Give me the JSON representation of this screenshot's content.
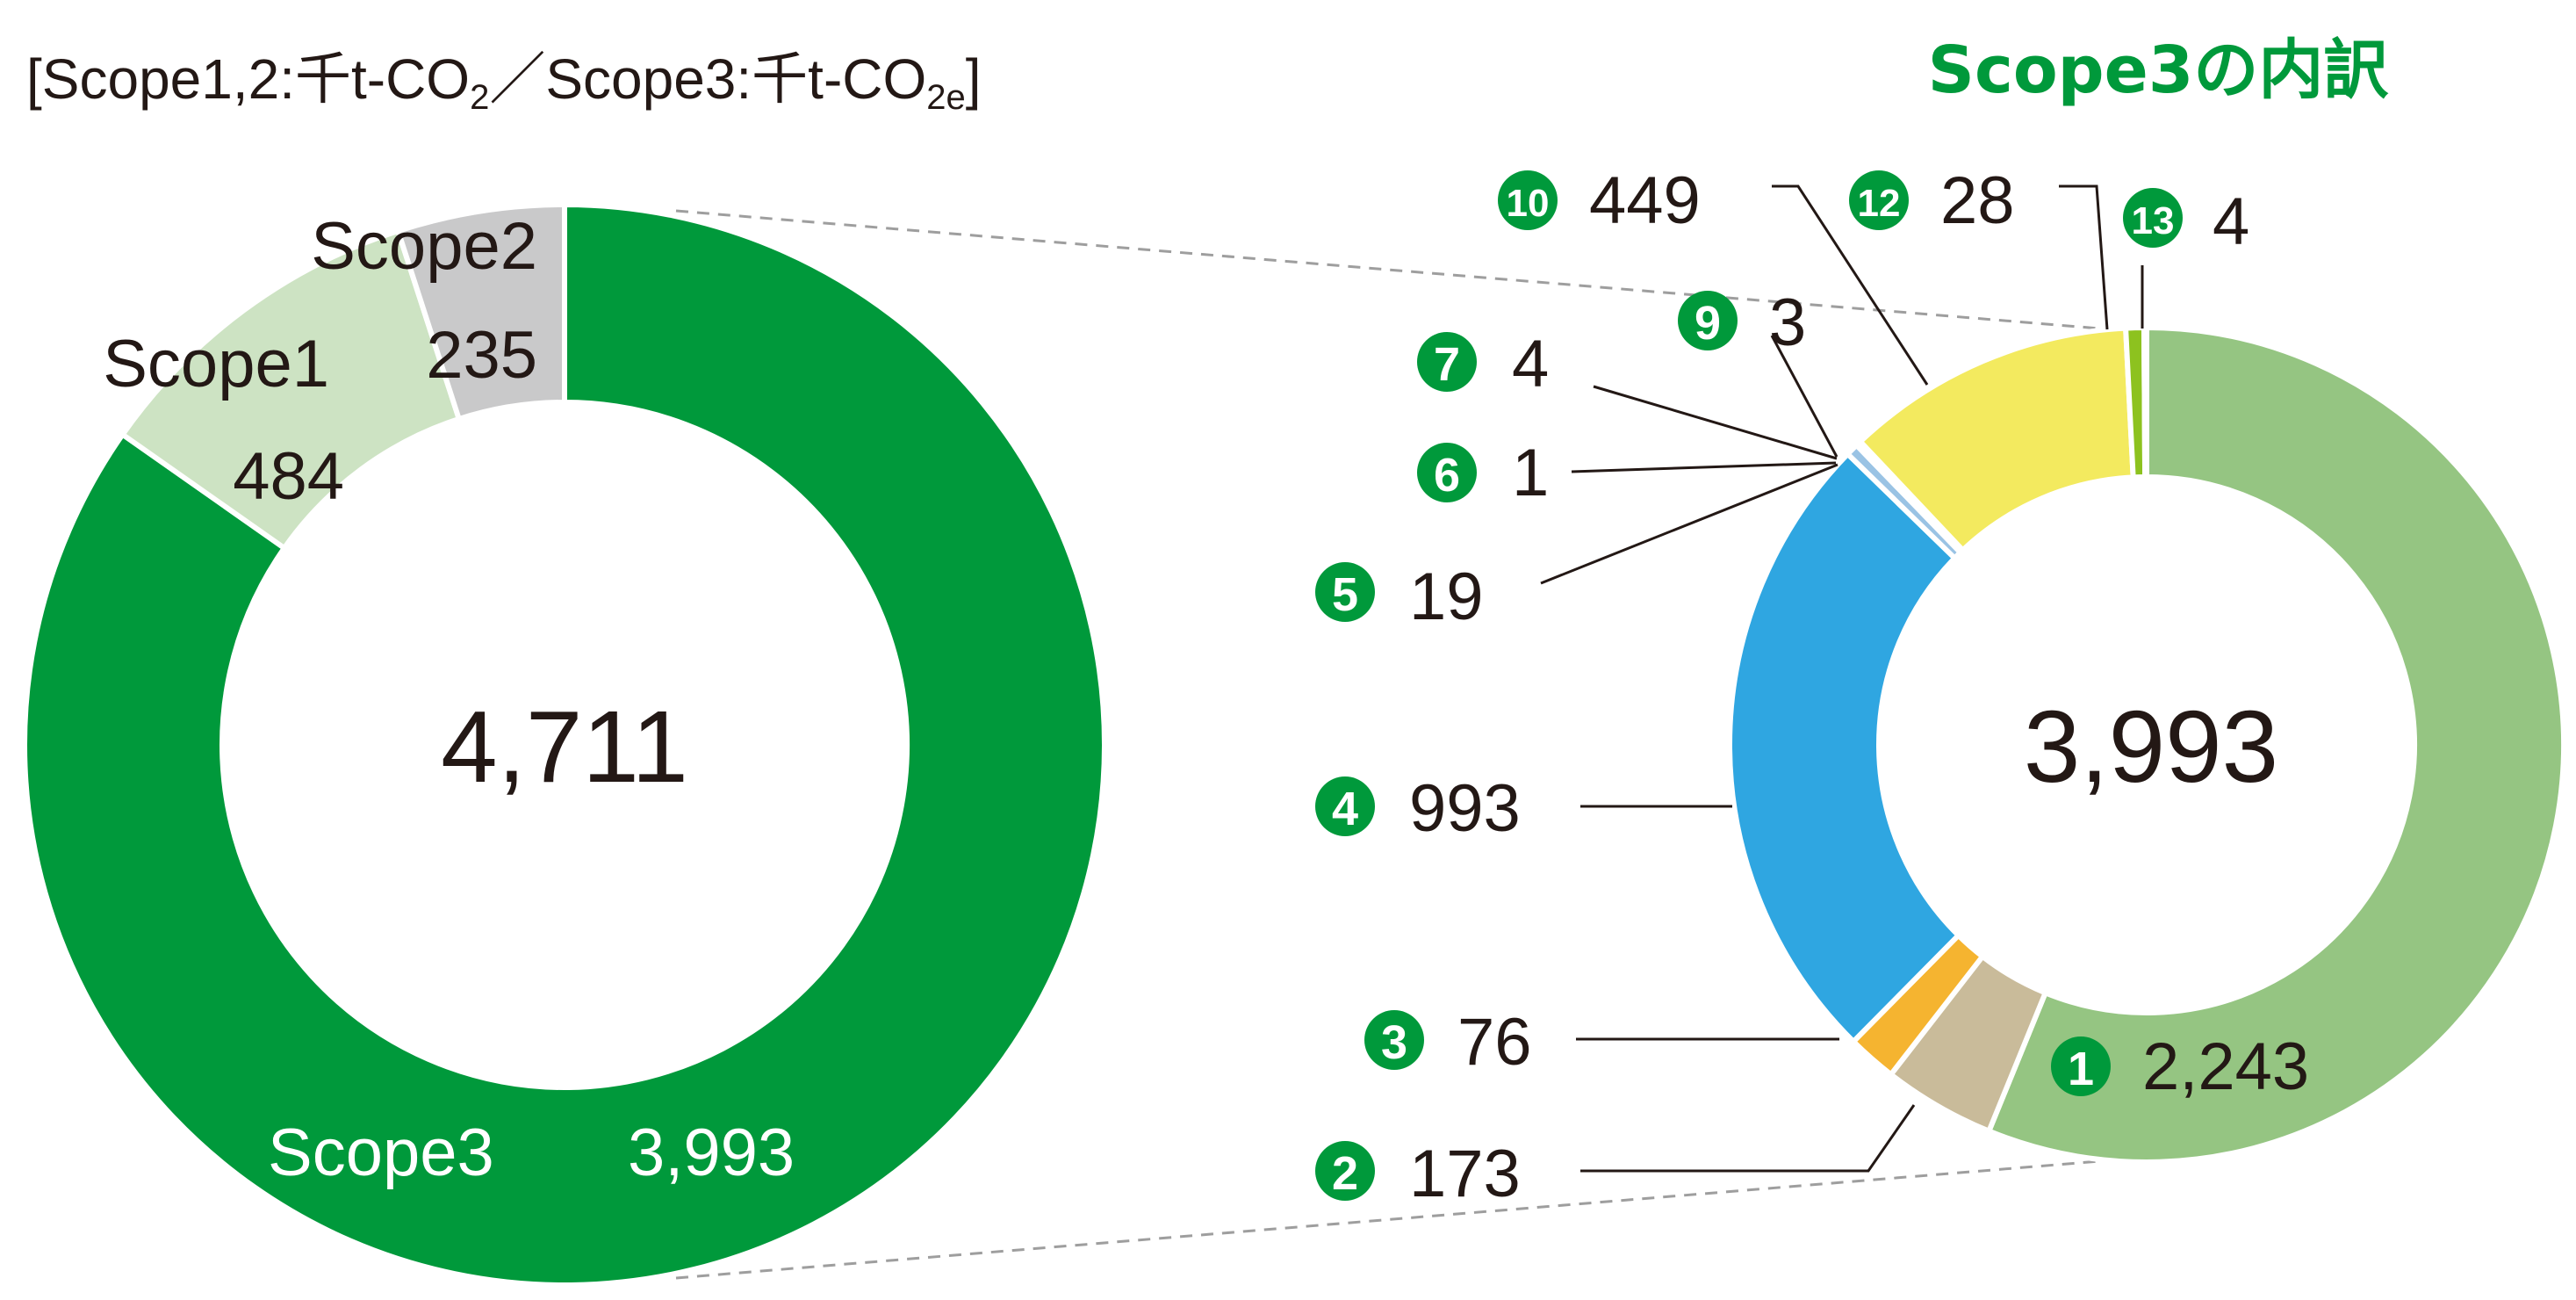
{
  "units_caption": {
    "prefix": "[Scope1,2:千t-CO",
    "sub1": "2",
    "mid": "／Scope3:千t-CO",
    "sub2": "2e",
    "suffix": "]"
  },
  "breakdown_heading": "Scope3の内訳",
  "chart_data": [
    {
      "type": "donut",
      "center_label": "4,711",
      "slices": [
        {
          "name": "Scope3",
          "value": 3993,
          "label": "3,993",
          "color": "#00993b"
        },
        {
          "name": "Scope1",
          "value": 484,
          "label": "484",
          "color": "#cde3c3"
        },
        {
          "name": "Scope2",
          "value": 235,
          "label": "235",
          "color": "#c9c9ca"
        }
      ]
    },
    {
      "type": "donut",
      "center_label": "3,993",
      "slices": [
        {
          "badge": "1",
          "value": 2243,
          "label": "2,243",
          "color": "#95c582"
        },
        {
          "badge": "2",
          "value": 173,
          "label": "173",
          "color": "#c9bb9a"
        },
        {
          "badge": "3",
          "value": 76,
          "label": "76",
          "color": "#f5b430"
        },
        {
          "badge": "4",
          "value": 993,
          "label": "993",
          "color": "#2fa6e1"
        },
        {
          "badge": "5",
          "value": 19,
          "label": "19",
          "color": "#9ac3e4"
        },
        {
          "badge": "6",
          "value": 1,
          "label": "1",
          "color": "#d6d6d6"
        },
        {
          "badge": "7",
          "value": 4,
          "label": "4",
          "color": "#bdbdbd"
        },
        {
          "badge": "9",
          "value": 3,
          "label": "3",
          "color": "#f8f0b0"
        },
        {
          "badge": "10",
          "value": 449,
          "label": "449",
          "color": "#f3ea5f"
        },
        {
          "badge": "12",
          "value": 28,
          "label": "28",
          "color": "#8dc21f"
        },
        {
          "badge": "13",
          "value": 4,
          "label": "4",
          "color": "#5b8f3c"
        }
      ]
    }
  ],
  "colors": {
    "badge": "#00993b",
    "text": "#231815",
    "leader": "#231815",
    "connector": "#9e9e9e"
  }
}
